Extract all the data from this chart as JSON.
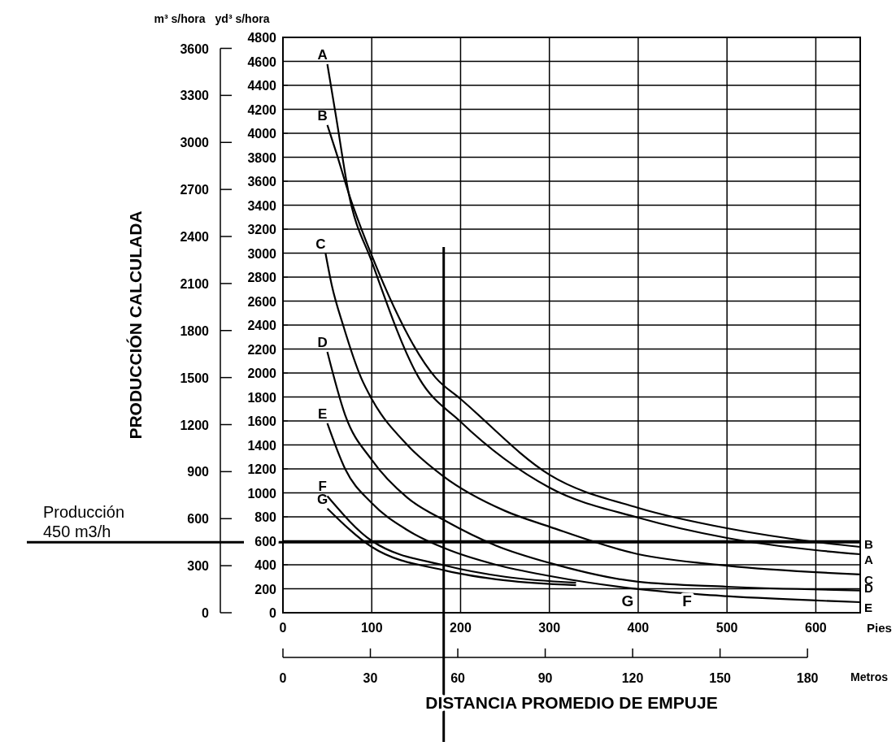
{
  "chart_data": {
    "type": "line",
    "xlabel": "Pies",
    "x2label": "Metros",
    "ylabel": "yd³ s/hora",
    "y2label": "m³ s/hora",
    "annotations": [
      "PRODUCCIÓN CALCULADA",
      "DISTANCIA PROMEDIO DE EMPUJE",
      "F",
      "G"
    ],
    "xlim": [
      0,
      650
    ],
    "xticks": [
      0,
      100,
      200,
      300,
      400,
      500,
      600
    ],
    "x2lim": [
      0,
      198.1
    ],
    "x2ticks": [
      0,
      30,
      60,
      90,
      120,
      150,
      180
    ],
    "ylim": [
      0,
      4800
    ],
    "yticks": [
      0,
      200,
      400,
      600,
      800,
      1000,
      1200,
      1400,
      1600,
      1800,
      2000,
      2200,
      2400,
      2600,
      2800,
      3000,
      3200,
      3400,
      3600,
      3800,
      4000,
      4200,
      4400,
      4600,
      4800
    ],
    "y2lim": [
      0,
      3670
    ],
    "y2ticks": [
      0,
      300,
      600,
      900,
      1200,
      1500,
      1800,
      2100,
      2400,
      2700,
      3000,
      3300,
      3600
    ],
    "grid": true,
    "marker": "none",
    "line_style": "solid",
    "ref_lines": [
      {
        "axis": "y2",
        "value": 450,
        "label": "Producción 450 m3/h",
        "color": "#000000"
      },
      {
        "axis": "x",
        "value": 181,
        "color": "#000000"
      }
    ],
    "series": [
      {
        "name": "A",
        "color": "#000000",
        "x": [
          50,
          60,
          74,
          100,
          153,
          200,
          300,
          400,
          500,
          600,
          650
        ],
        "values": [
          4576,
          4130,
          3500,
          2930,
          1960,
          1593,
          1044,
          793,
          624,
          522,
          488
        ]
      },
      {
        "name": "B",
        "color": "#000000",
        "x": [
          50,
          60,
          74,
          100,
          172,
          200,
          300,
          400,
          500,
          600,
          650
        ],
        "values": [
          4068,
          3840,
          3500,
          2980,
          1960,
          1783,
          1152,
          875,
          705,
          590,
          549
        ]
      },
      {
        "name": "C",
        "color": "#000000",
        "x": [
          48,
          55,
          68,
          88,
          100,
          140,
          180,
          250,
          300,
          400,
          500,
          650
        ],
        "values": [
          2997,
          2732,
          2393,
          1960,
          1783,
          1400,
          1142,
          850,
          718,
          488,
          393,
          319
        ]
      },
      {
        "name": "D",
        "color": "#000000",
        "x": [
          50,
          70,
          100,
          140,
          183,
          240,
          300,
          400,
          500,
          650
        ],
        "values": [
          2176,
          1650,
          1275,
          960,
          766,
          560,
          416,
          258,
          217,
          186
        ]
      },
      {
        "name": "E",
        "color": "#000000",
        "x": [
          50,
          70,
          100,
          140,
          183,
          240,
          300,
          400,
          450,
          500,
          650
        ],
        "values": [
          1580,
          1200,
          915,
          690,
          535,
          400,
          307,
          198,
          163,
          138,
          88
        ]
      },
      {
        "name": "F",
        "color": "#000000",
        "x": [
          50,
          100,
          183,
          250,
          330
        ],
        "values": [
          973,
          600,
          393,
          300,
          250
        ]
      },
      {
        "name": "G",
        "color": "#000000",
        "x": [
          50,
          100,
          183,
          250,
          330
        ],
        "values": [
          870,
          549,
          352,
          270,
          230
        ]
      }
    ]
  }
}
